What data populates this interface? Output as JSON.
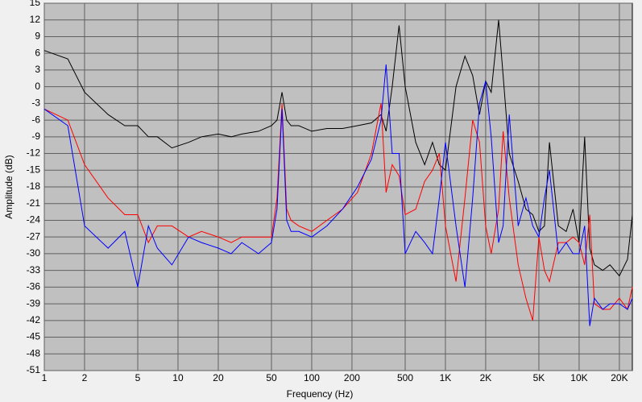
{
  "chart_data": {
    "type": "line",
    "x_label": "Frequency (Hz)",
    "y_label": "Amplitude (dB)",
    "xscale": "log",
    "grid": true,
    "plot_background": "#c0c0c0",
    "xlim": [
      1,
      25000
    ],
    "ylim": [
      -51,
      15
    ],
    "xticks": [
      1,
      2,
      5,
      10,
      20,
      50,
      100,
      200,
      500,
      {
        "value": 1000,
        "label": "1K"
      },
      {
        "value": 2000,
        "label": "2K"
      },
      {
        "value": 5000,
        "label": "5K"
      },
      {
        "value": 10000,
        "label": "10K"
      },
      {
        "value": 20000,
        "label": "20K"
      }
    ],
    "yticks": [
      15,
      12,
      9,
      6,
      3,
      0,
      -3,
      -6,
      -9,
      -12,
      -15,
      -18,
      -21,
      -24,
      -27,
      -30,
      -33,
      -36,
      -39,
      -42,
      -45,
      -48,
      -51
    ],
    "x": [
      1,
      1.5,
      2,
      3,
      4,
      5,
      6,
      7,
      9,
      12,
      15,
      20,
      25,
      30,
      40,
      50,
      55,
      60,
      65,
      70,
      80,
      100,
      130,
      170,
      220,
      280,
      330,
      360,
      400,
      450,
      500,
      600,
      700,
      800,
      900,
      1000,
      1200,
      1400,
      1600,
      1800,
      2000,
      2200,
      2500,
      2700,
      3000,
      3500,
      4000,
      4500,
      5000,
      5500,
      6000,
      7000,
      8000,
      9000,
      10000,
      11000,
      12000,
      13000,
      15000,
      17000,
      20000,
      23000,
      25000
    ],
    "series": [
      {
        "color": "#000000",
        "values": [
          6.5,
          5,
          -1,
          -5,
          -7,
          -7,
          -9,
          -9,
          -11,
          -10,
          -9,
          -8.5,
          -9,
          -8.5,
          -8,
          -7,
          -6,
          -1,
          -6,
          -7,
          -7,
          -8,
          -7.5,
          -7.5,
          -7,
          -6.5,
          -5,
          -8,
          0,
          11,
          0,
          -10,
          -14,
          -10,
          -14,
          -15,
          0,
          5.5,
          2,
          -5,
          1,
          -1,
          12,
          2,
          -12,
          -17,
          -22,
          -23,
          -26,
          -25,
          -10,
          -25,
          -26,
          -22,
          -28,
          -9,
          -29,
          -32,
          -33,
          -32,
          -34,
          -31,
          -23
        ]
      },
      {
        "color": "#ff0000",
        "values": [
          -4,
          -6,
          -14,
          -20,
          -23,
          -23,
          -28,
          -25,
          -25,
          -27,
          -26,
          -27,
          -28,
          -27,
          -27,
          -27,
          -20,
          -3,
          -22,
          -24,
          -25,
          -26,
          -24,
          -22,
          -19,
          -12,
          -3,
          -19,
          -14,
          -16,
          -23,
          -22,
          -17,
          -15,
          -12,
          -25,
          -35,
          -20,
          -6,
          -10,
          -25,
          -30,
          -22,
          -8,
          -20,
          -32,
          -38,
          -42,
          -27,
          -33,
          -35,
          -28,
          -28,
          -27,
          -28,
          -32,
          -23,
          -39,
          -40,
          -40,
          -38,
          -40,
          -36
        ]
      },
      {
        "color": "#0000ff",
        "values": [
          -4,
          -7,
          -25,
          -29,
          -26,
          -36,
          -25,
          -29,
          -32,
          -27,
          -28,
          -29,
          -30,
          -28,
          -30,
          -28,
          -22,
          -4,
          -24,
          -26,
          -26,
          -27,
          -25,
          -22,
          -18,
          -13,
          -6,
          4,
          -12,
          -12,
          -30,
          -26,
          -28,
          -30,
          -20,
          -10,
          -25,
          -36,
          -20,
          -3,
          1,
          -9,
          -28,
          -25,
          -5,
          -25,
          -20,
          -25,
          -27,
          -20,
          -15,
          -30,
          -28,
          -30,
          -30,
          -25,
          -43,
          -38,
          -40,
          -39,
          -39,
          -40,
          -38
        ]
      }
    ]
  }
}
